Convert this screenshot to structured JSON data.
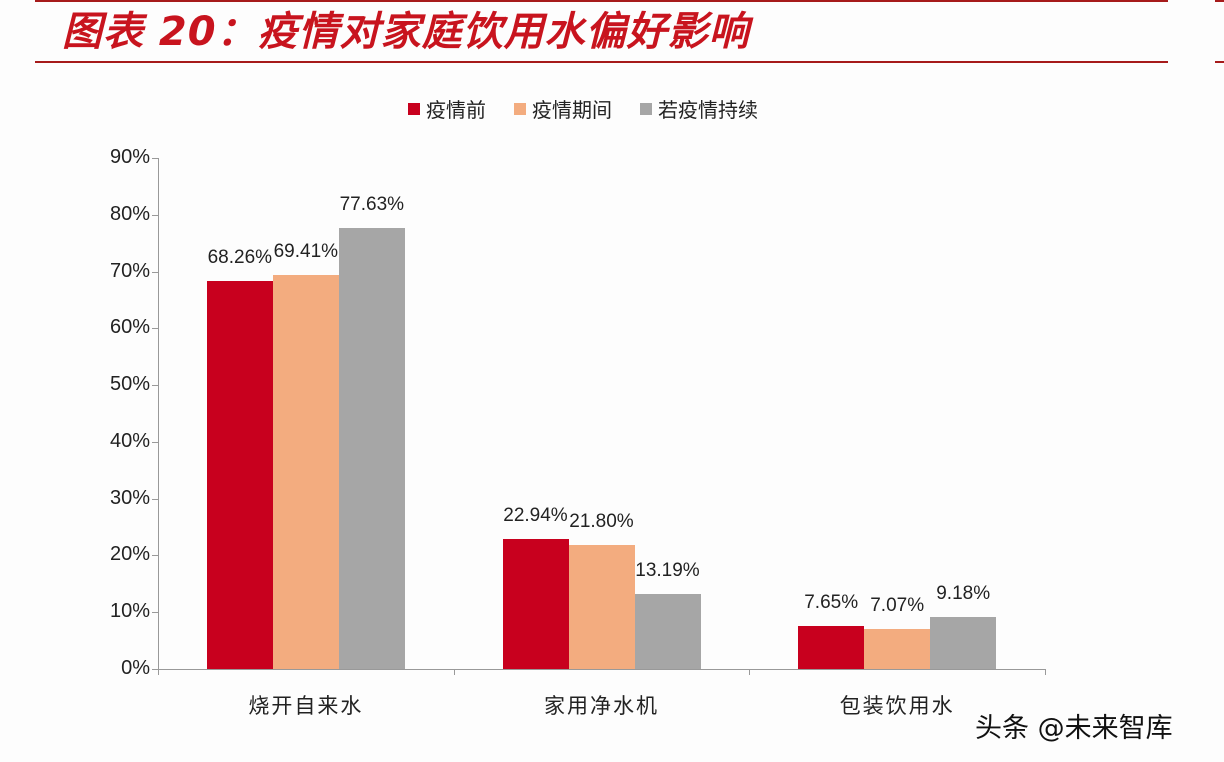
{
  "header": {
    "title": "图表 20：疫情对家庭饮用水偏好影响"
  },
  "watermark": "头条 @未来智库",
  "colors": {
    "before": "#c8001e",
    "during": "#f3ac7f",
    "continue": "#a6a6a6",
    "rule": "#a61b1b",
    "title": "#c8141e"
  },
  "chart_data": {
    "type": "bar",
    "title": "图表 20：疫情对家庭饮用水偏好影响",
    "xlabel": "",
    "ylabel": "",
    "categories": [
      "烧开自来水",
      "家用净水机",
      "包装饮用水"
    ],
    "series": [
      {
        "name": "疫情前",
        "values": [
          68.26,
          22.94,
          7.65
        ],
        "labels": [
          "68.26%",
          "22.94%",
          "7.65%"
        ]
      },
      {
        "name": "疫情期间",
        "values": [
          69.41,
          21.8,
          7.07
        ],
        "labels": [
          "69.41%",
          "21.80%",
          "7.07%"
        ]
      },
      {
        "name": "若疫情持续",
        "values": [
          77.63,
          13.19,
          9.18
        ],
        "labels": [
          "77.63%",
          "13.19%",
          "9.18%"
        ]
      }
    ],
    "yticks": [
      "0%",
      "10%",
      "20%",
      "30%",
      "40%",
      "50%",
      "60%",
      "70%",
      "80%",
      "90%"
    ],
    "ylim": [
      0,
      90
    ],
    "grid": false,
    "legend_position": "top"
  }
}
